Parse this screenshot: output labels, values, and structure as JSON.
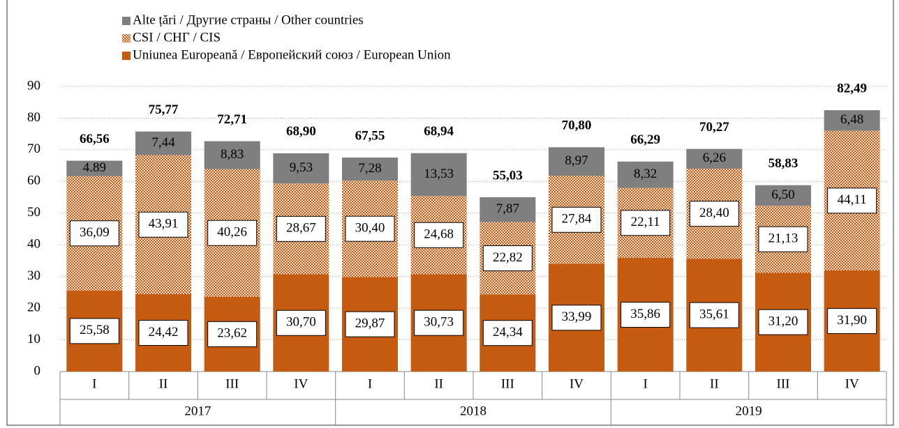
{
  "chart_data": {
    "type": "stacked_bar",
    "categories": [
      "I",
      "II",
      "III",
      "IV",
      "I",
      "II",
      "III",
      "IV",
      "I",
      "II",
      "III",
      "IV"
    ],
    "years": [
      "2017",
      "2018",
      "2019"
    ],
    "series": [
      {
        "name": "Uniunea Europeană / Европейский союз / European Union",
        "color": "#c55a11",
        "values": [
          25.58,
          24.42,
          23.62,
          30.7,
          29.87,
          30.73,
          24.34,
          33.99,
          35.86,
          35.61,
          31.2,
          31.9
        ],
        "value_labels": [
          "25,58",
          "24,42",
          "23,62",
          "30,70",
          "29,87",
          "30,73",
          "24,34",
          "33,99",
          "35,86",
          "35,61",
          "31,20",
          "31,90"
        ]
      },
      {
        "name": "CSI / СНГ / CIS",
        "color": "#c55a11",
        "pattern": "dotted",
        "values": [
          36.09,
          43.91,
          40.26,
          28.67,
          30.4,
          24.68,
          22.82,
          27.84,
          22.11,
          28.4,
          21.13,
          44.11
        ],
        "value_labels": [
          "36,09",
          "43,91",
          "40,26",
          "28,67",
          "30,40",
          "24,68",
          "22,82",
          "27,84",
          "22,11",
          "28,40",
          "21,13",
          "44,11"
        ]
      },
      {
        "name": "Alte țări / Другие страны / Other countries",
        "color": "#7f7f7f",
        "values": [
          4.89,
          7.44,
          8.83,
          9.53,
          7.28,
          13.53,
          7.87,
          8.97,
          8.32,
          6.26,
          6.5,
          6.48
        ],
        "value_labels": [
          "4.89",
          "7,44",
          "8,83",
          "9,53",
          "7,28",
          "13,53",
          "7,87",
          "8,97",
          "8,32",
          "6,26",
          "6,50",
          "6,48"
        ]
      }
    ],
    "totals": [
      66.56,
      75.77,
      72.71,
      68.9,
      67.55,
      68.94,
      55.03,
      70.8,
      66.29,
      70.27,
      58.83,
      82.49
    ],
    "total_labels": [
      "66,56",
      "75,77",
      "72,71",
      "68,90",
      "67,55",
      "68,94",
      "55,03",
      "70,80",
      "66,29",
      "70,27",
      "58,83",
      "82,49"
    ],
    "total_color": "#9c4a12",
    "ylim": [
      0,
      90
    ],
    "yticks": [
      0,
      10,
      20,
      30,
      40,
      50,
      60,
      70,
      80,
      90
    ],
    "grid": true
  }
}
